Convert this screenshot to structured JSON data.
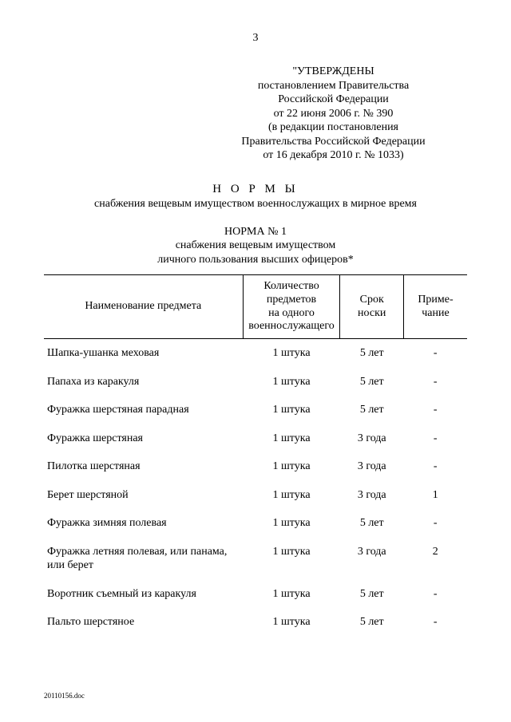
{
  "page_number": "3",
  "approval": {
    "line1": "\"УТВЕРЖДЕНЫ",
    "line2": "постановлением Правительства",
    "line3": "Российской Федерации",
    "line4": "от 22 июня 2006 г. № 390",
    "line5": "(в редакции постановления",
    "line6": "Правительства Российской Федерации",
    "line7": "от 16 декабря 2010 г. № 1033)"
  },
  "heading": "Н О Р М Ы",
  "subheading": "снабжения вещевым имуществом военнослужащих в мирное время",
  "norm": {
    "title": "НОРМА № 1",
    "line2": "снабжения вещевым имуществом",
    "line3": "личного пользования высших офицеров*"
  },
  "table": {
    "columns": {
      "name": "Наименование предмета",
      "qty_l1": "Количество",
      "qty_l2": "предметов",
      "qty_l3": "на одного",
      "qty_l4": "военнослужащего",
      "term_l1": "Срок",
      "term_l2": "носки",
      "note_l1": "Приме-",
      "note_l2": "чание"
    },
    "rows": [
      {
        "name": "Шапка-ушанка меховая",
        "qty": "1 штука",
        "term": "5 лет",
        "note": "-"
      },
      {
        "name": "Папаха из каракуля",
        "qty": "1 штука",
        "term": "5 лет",
        "note": "-"
      },
      {
        "name": "Фуражка шерстяная парадная",
        "qty": "1 штука",
        "term": "5 лет",
        "note": "-"
      },
      {
        "name": "Фуражка шерстяная",
        "qty": "1 штука",
        "term": "3 года",
        "note": "-"
      },
      {
        "name": "Пилотка шерстяная",
        "qty": "1 штука",
        "term": "3 года",
        "note": "-"
      },
      {
        "name": "Берет шерстяной",
        "qty": "1 штука",
        "term": "3 года",
        "note": "1"
      },
      {
        "name": "Фуражка зимняя полевая",
        "qty": "1 штука",
        "term": "5 лет",
        "note": "-"
      },
      {
        "name": "Фуражка летняя полевая, или панама, или берет",
        "qty": "1 штука",
        "term": "3 года",
        "note": "2"
      },
      {
        "name": "Воротник съемный из каракуля",
        "qty": "1 штука",
        "term": "5 лет",
        "note": "-"
      },
      {
        "name": "Пальто шерстяное",
        "qty": "1 штука",
        "term": "5 лет",
        "note": "-"
      }
    ]
  },
  "footer_code": "20110156.doc"
}
